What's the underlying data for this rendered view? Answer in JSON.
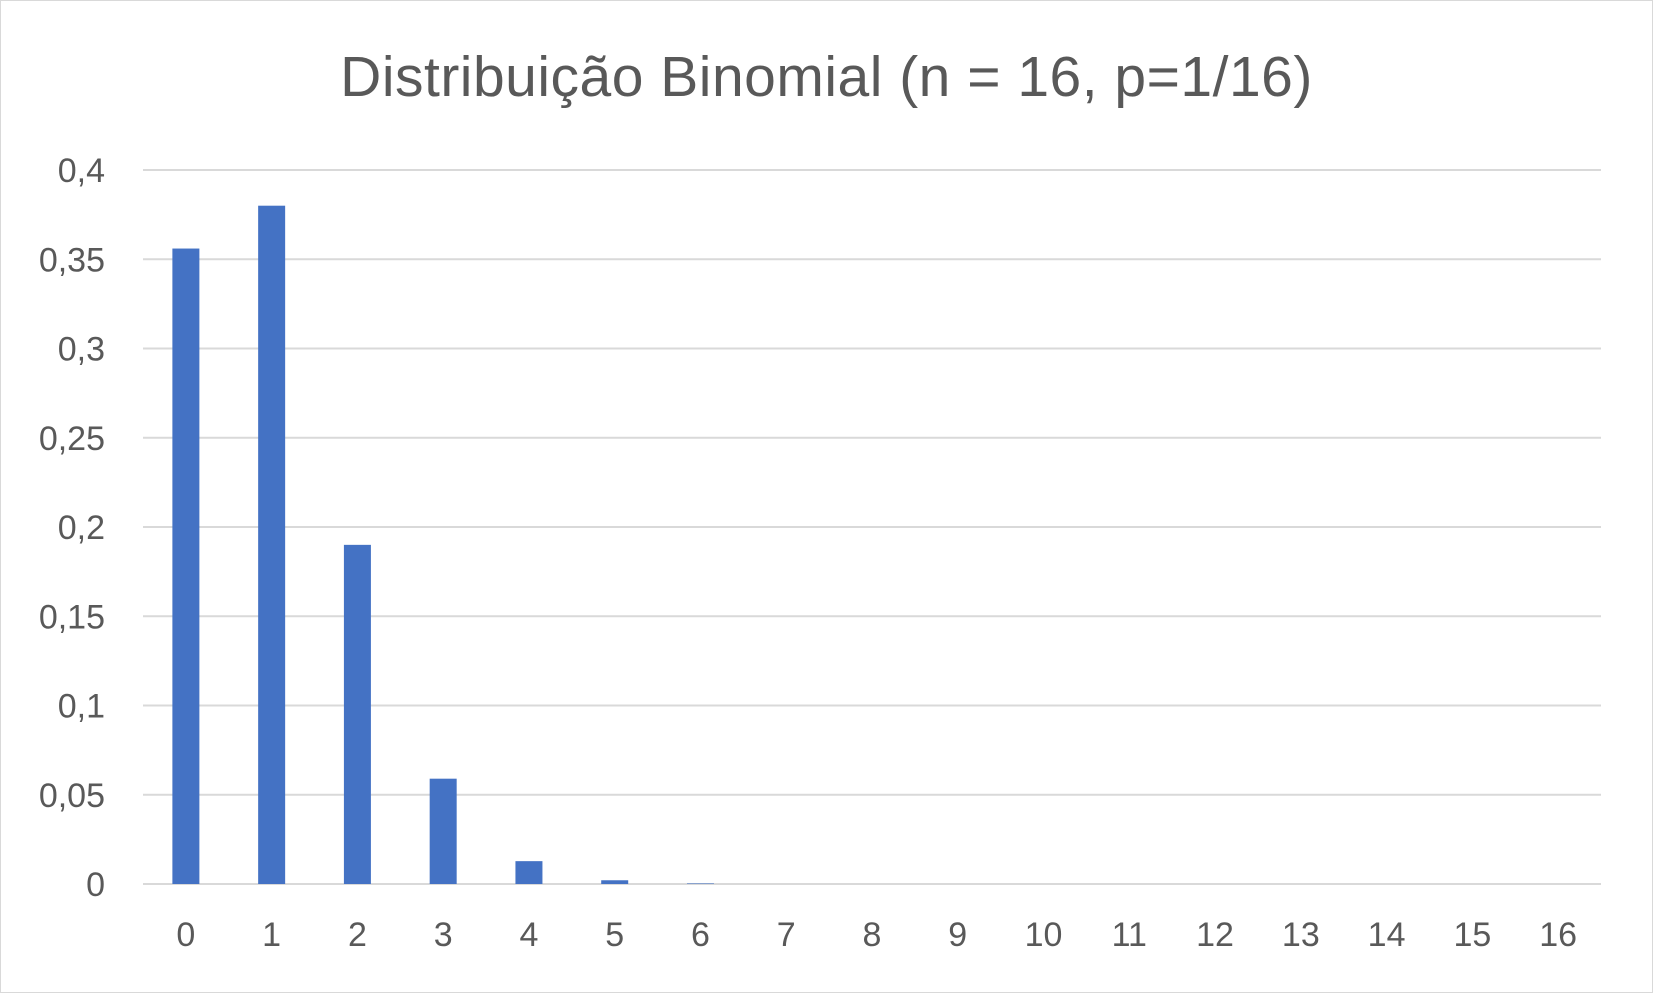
{
  "chart_data": {
    "type": "bar",
    "title": "Distribuição Binomial (n = 16, p=1/16)",
    "xlabel": "",
    "ylabel": "",
    "categories": [
      "0",
      "1",
      "2",
      "3",
      "4",
      "5",
      "6",
      "7",
      "8",
      "9",
      "10",
      "11",
      "12",
      "13",
      "14",
      "15",
      "16"
    ],
    "values": [
      0.356,
      0.38,
      0.19,
      0.059,
      0.0128,
      0.0021,
      0.0003,
      0,
      0,
      0,
      0,
      0,
      0,
      0,
      0,
      0,
      0
    ],
    "ylim": [
      0,
      0.4
    ],
    "yticks": [
      0,
      0.05,
      0.1,
      0.15,
      0.2,
      0.25,
      0.3,
      0.35,
      0.4
    ],
    "ytick_labels": [
      "0",
      "0,05",
      "0,1",
      "0,15",
      "0,2",
      "0,25",
      "0,3",
      "0,35",
      "0,4"
    ],
    "grid": true,
    "legend": "none",
    "bar_color": "#4472c4",
    "grid_color": "#d9d9d9",
    "text_color": "#595959"
  }
}
